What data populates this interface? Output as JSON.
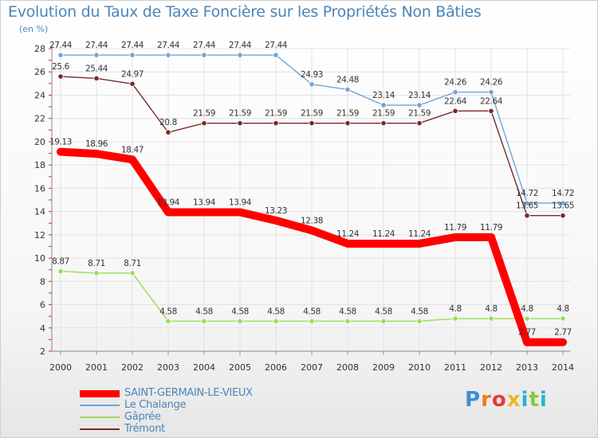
{
  "title": "Evolution du Taux de Taxe Foncière sur les Propriétés Non Bâties",
  "unit_label": "(en %)",
  "logo_text": "Proxiti",
  "chart_data": {
    "type": "line",
    "title": "Evolution du Taux de Taxe Foncière sur les Propriétés Non Bâties",
    "ylabel": "(en %)",
    "xlabel": "",
    "ylim": [
      2,
      28
    ],
    "yticks": [
      2,
      4,
      6,
      8,
      10,
      12,
      14,
      16,
      18,
      20,
      22,
      24,
      26,
      28
    ],
    "categories": [
      "2000",
      "2001",
      "2002",
      "2003",
      "2004",
      "2005",
      "2006",
      "2007",
      "2008",
      "2009",
      "2010",
      "2011",
      "2012",
      "2013",
      "2014"
    ],
    "series": [
      {
        "name": "SAINT-GERMAIN-LE-VIEUX",
        "color": "#ff0000",
        "values": [
          19.13,
          18.96,
          18.47,
          13.94,
          13.94,
          13.94,
          13.23,
          12.38,
          11.24,
          11.24,
          11.24,
          11.79,
          11.79,
          2.77,
          2.77
        ],
        "labels": [
          "19.13",
          "18.96",
          "18.47",
          "13.94",
          "13.94",
          "13.94",
          "13.23",
          "12.38",
          "11.24",
          "11.24",
          "11.24",
          "11.79",
          "11.79",
          "2.77",
          "2.77"
        ]
      },
      {
        "name": "Le Chalange",
        "color": "#6ea6d9",
        "values": [
          27.44,
          27.44,
          27.44,
          27.44,
          27.44,
          27.44,
          27.44,
          24.93,
          24.48,
          23.14,
          23.14,
          24.26,
          24.26,
          14.72,
          14.72
        ],
        "labels": [
          "27.44",
          "27.44",
          "27.44",
          "27.44",
          "27.44",
          "27.44",
          "27.44",
          "24.93",
          "24.48",
          "23.14",
          "23.14",
          "24.26",
          "24.26",
          "14.72",
          "14.72"
        ]
      },
      {
        "name": "Gâprée",
        "color": "#99dd55",
        "values": [
          8.87,
          8.71,
          8.71,
          4.58,
          4.58,
          4.58,
          4.58,
          4.58,
          4.58,
          4.58,
          4.58,
          4.8,
          4.8,
          4.8,
          4.8
        ],
        "labels": [
          "8.87",
          "8.71",
          "8.71",
          "4.58",
          "4.58",
          "4.58",
          "4.58",
          "4.58",
          "4.58",
          "4.58",
          "4.58",
          "4.8",
          "4.8",
          "4.8",
          "4.8"
        ]
      },
      {
        "name": "Trémont",
        "color": "#7a2a2a",
        "values": [
          25.6,
          25.44,
          24.97,
          20.8,
          21.59,
          21.59,
          21.59,
          21.59,
          21.59,
          21.59,
          21.59,
          22.64,
          22.64,
          13.65,
          13.65
        ],
        "labels": [
          "25.6",
          "25.44",
          "24.97",
          "20.8",
          "21.59",
          "21.59",
          "21.59",
          "21.59",
          "21.59",
          "21.59",
          "21.59",
          "22.64",
          "22.64",
          "13.65",
          "13.65"
        ]
      }
    ]
  }
}
